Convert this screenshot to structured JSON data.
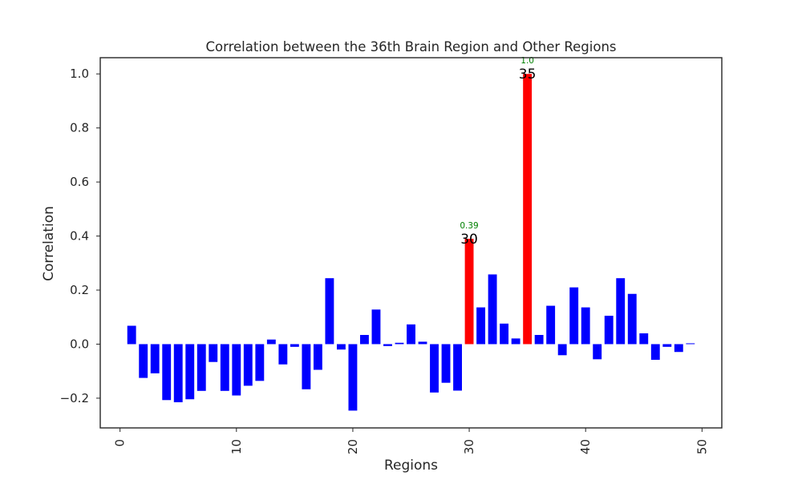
{
  "chart_data": {
    "type": "bar",
    "title": "Correlation between the 36th Brain Region and Other Regions",
    "xlabel": "Regions",
    "ylabel": "Correlation",
    "x": [
      1,
      2,
      3,
      4,
      5,
      6,
      7,
      8,
      9,
      10,
      11,
      12,
      13,
      14,
      15,
      16,
      17,
      18,
      19,
      20,
      21,
      22,
      23,
      24,
      25,
      26,
      27,
      28,
      29,
      30,
      31,
      32,
      33,
      34,
      35,
      36,
      37,
      38,
      39,
      40,
      41,
      42,
      43,
      44,
      45,
      46,
      47,
      48,
      49
    ],
    "values": [
      0.068,
      -0.125,
      -0.108,
      -0.207,
      -0.215,
      -0.204,
      -0.173,
      -0.066,
      -0.173,
      -0.19,
      -0.154,
      -0.136,
      0.017,
      -0.075,
      -0.01,
      -0.167,
      -0.095,
      0.244,
      -0.02,
      -0.246,
      0.034,
      0.128,
      -0.007,
      0.005,
      0.073,
      0.009,
      -0.179,
      -0.143,
      -0.172,
      0.39,
      0.136,
      0.258,
      0.076,
      0.021,
      1.0,
      0.034,
      0.142,
      -0.041,
      0.21,
      0.136,
      -0.056,
      0.105,
      0.244,
      0.186,
      0.04,
      -0.058,
      -0.01,
      -0.029,
      0.003
    ],
    "bar_colors": {
      "default": "#0000ff",
      "highlight": "#ff0000"
    },
    "highlighted_regions": [
      30,
      35
    ],
    "annotations": [
      {
        "region": 30,
        "label": "30",
        "value_text": "0.39"
      },
      {
        "region": 35,
        "label": "35",
        "value_text": "1.0"
      }
    ],
    "annotation_color": "#008000",
    "xlim": [
      -1.7,
      51.7
    ],
    "ylim": [
      -0.31,
      1.06
    ],
    "xticks": [
      0,
      10,
      20,
      30,
      40,
      50
    ],
    "xtick_labels": [
      "0",
      "10",
      "20",
      "30",
      "40",
      "50"
    ],
    "yticks": [
      -0.2,
      0.0,
      0.2,
      0.4,
      0.6,
      0.8,
      1.0
    ],
    "ytick_labels": [
      "−0.2",
      "0.0",
      "0.2",
      "0.4",
      "0.6",
      "0.8",
      "1.0"
    ],
    "xtick_rotation_deg": 90,
    "grid": false,
    "legend": false
  }
}
